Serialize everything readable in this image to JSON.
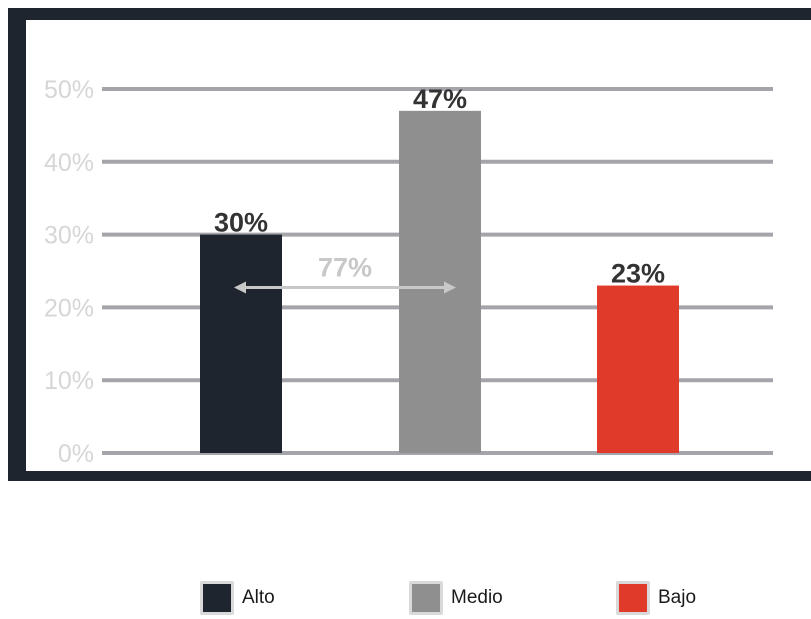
{
  "chart_data": {
    "type": "bar",
    "categories": [
      "Alto",
      "Medio",
      "Bajo"
    ],
    "values": [
      30,
      47,
      23
    ],
    "data_labels": [
      "30%",
      "47%",
      "23%"
    ],
    "colors": [
      "#1f252e",
      "#8f8f8f",
      "#e03a2b"
    ],
    "y_ticks": [
      "0%",
      "10%",
      "20%",
      "30%",
      "40%",
      "50%"
    ],
    "ylim": [
      0,
      50
    ],
    "grid": true,
    "annotation": {
      "label": "77%",
      "from_category": "Alto",
      "to_category": "Medio",
      "at_value": 23
    },
    "legend": {
      "placement": "bottom",
      "entries": [
        "Alto",
        "Medio",
        "Bajo"
      ]
    }
  }
}
